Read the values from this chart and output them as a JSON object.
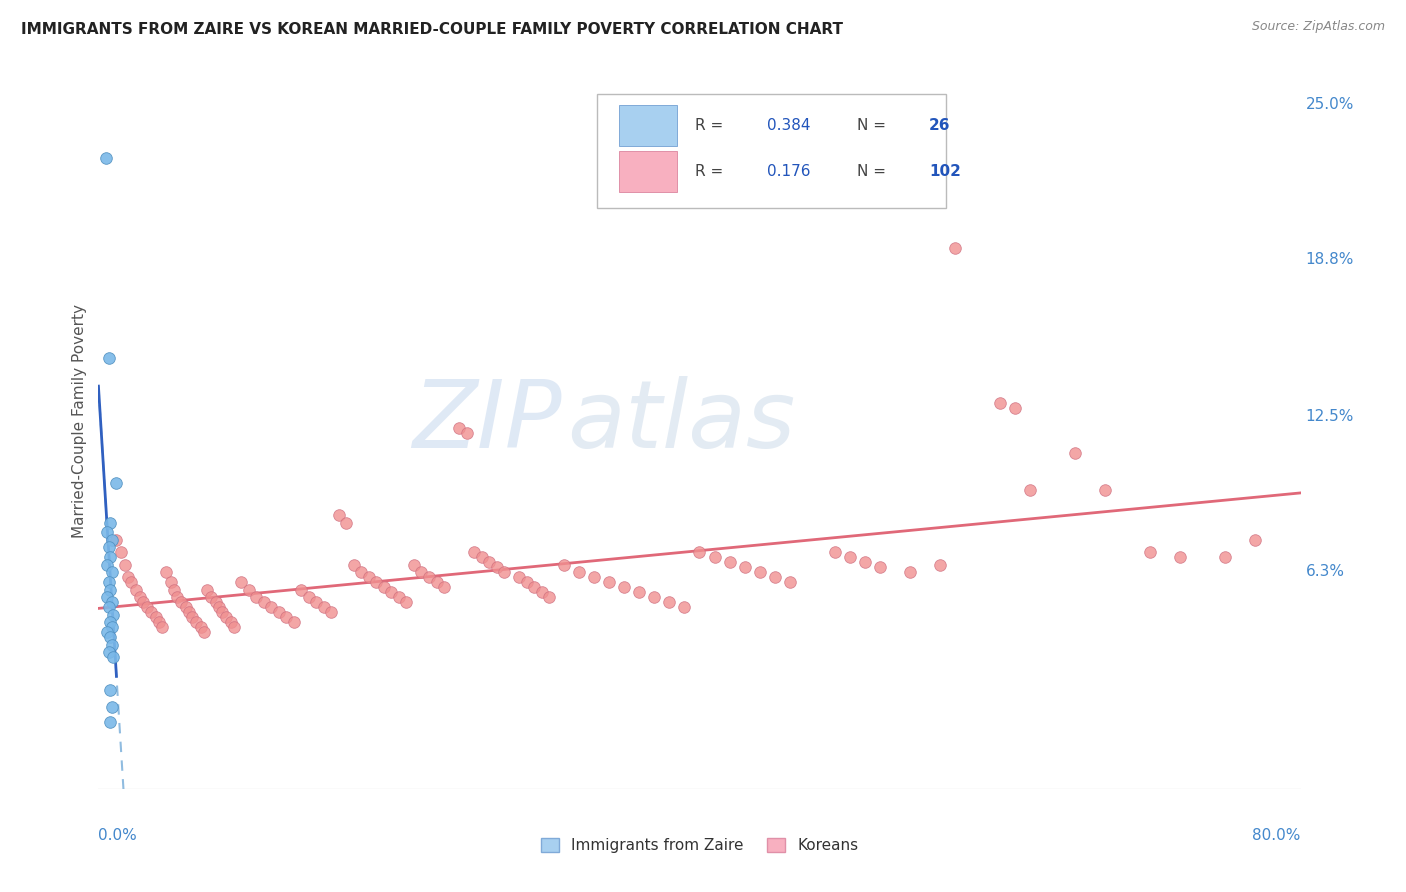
{
  "title": "IMMIGRANTS FROM ZAIRE VS KOREAN MARRIED-COUPLE FAMILY POVERTY CORRELATION CHART",
  "source": "Source: ZipAtlas.com",
  "ylabel": "Married-Couple Family Poverty",
  "xlim": [
    0.0,
    0.8
  ],
  "ylim": [
    -0.025,
    0.27
  ],
  "watermark_zip": "ZIP",
  "watermark_atlas": "atlas",
  "zaire_scatter_color": "#7ab8e8",
  "zaire_scatter_edge": "#5090c0",
  "korean_scatter_color": "#f09090",
  "korean_scatter_edge": "#d07080",
  "zaire_trend_solid_color": "#3060c0",
  "zaire_trend_dash_color": "#90bce0",
  "korean_trend_color": "#e06878",
  "legend_box_color": "#cccccc",
  "right_tick_color": "#4488cc",
  "grid_color": "#d8d8e8",
  "background_color": "#ffffff",
  "right_yticks": [
    0.0,
    0.063,
    0.125,
    0.188,
    0.25
  ],
  "right_yticklabels": [
    "",
    "6.3%",
    "12.5%",
    "18.8%",
    "25.0%"
  ],
  "zaire_points": [
    [
      0.005,
      0.228
    ],
    [
      0.007,
      0.148
    ],
    [
      0.012,
      0.098
    ],
    [
      0.008,
      0.082
    ],
    [
      0.006,
      0.078
    ],
    [
      0.009,
      0.075
    ],
    [
      0.007,
      0.072
    ],
    [
      0.008,
      0.068
    ],
    [
      0.006,
      0.065
    ],
    [
      0.009,
      0.062
    ],
    [
      0.007,
      0.058
    ],
    [
      0.008,
      0.055
    ],
    [
      0.006,
      0.052
    ],
    [
      0.009,
      0.05
    ],
    [
      0.007,
      0.048
    ],
    [
      0.01,
      0.045
    ],
    [
      0.008,
      0.042
    ],
    [
      0.009,
      0.04
    ],
    [
      0.006,
      0.038
    ],
    [
      0.008,
      0.036
    ],
    [
      0.009,
      0.033
    ],
    [
      0.007,
      0.03
    ],
    [
      0.01,
      0.028
    ],
    [
      0.008,
      0.015
    ],
    [
      0.009,
      0.008
    ],
    [
      0.008,
      0.002
    ]
  ],
  "korean_points": [
    [
      0.012,
      0.075
    ],
    [
      0.015,
      0.07
    ],
    [
      0.018,
      0.065
    ],
    [
      0.02,
      0.06
    ],
    [
      0.022,
      0.058
    ],
    [
      0.025,
      0.055
    ],
    [
      0.028,
      0.052
    ],
    [
      0.03,
      0.05
    ],
    [
      0.032,
      0.048
    ],
    [
      0.035,
      0.046
    ],
    [
      0.038,
      0.044
    ],
    [
      0.04,
      0.042
    ],
    [
      0.042,
      0.04
    ],
    [
      0.045,
      0.062
    ],
    [
      0.048,
      0.058
    ],
    [
      0.05,
      0.055
    ],
    [
      0.052,
      0.052
    ],
    [
      0.055,
      0.05
    ],
    [
      0.058,
      0.048
    ],
    [
      0.06,
      0.046
    ],
    [
      0.062,
      0.044
    ],
    [
      0.065,
      0.042
    ],
    [
      0.068,
      0.04
    ],
    [
      0.07,
      0.038
    ],
    [
      0.072,
      0.055
    ],
    [
      0.075,
      0.052
    ],
    [
      0.078,
      0.05
    ],
    [
      0.08,
      0.048
    ],
    [
      0.082,
      0.046
    ],
    [
      0.085,
      0.044
    ],
    [
      0.088,
      0.042
    ],
    [
      0.09,
      0.04
    ],
    [
      0.095,
      0.058
    ],
    [
      0.1,
      0.055
    ],
    [
      0.105,
      0.052
    ],
    [
      0.11,
      0.05
    ],
    [
      0.115,
      0.048
    ],
    [
      0.12,
      0.046
    ],
    [
      0.125,
      0.044
    ],
    [
      0.13,
      0.042
    ],
    [
      0.135,
      0.055
    ],
    [
      0.14,
      0.052
    ],
    [
      0.145,
      0.05
    ],
    [
      0.15,
      0.048
    ],
    [
      0.155,
      0.046
    ],
    [
      0.16,
      0.085
    ],
    [
      0.165,
      0.082
    ],
    [
      0.17,
      0.065
    ],
    [
      0.175,
      0.062
    ],
    [
      0.18,
      0.06
    ],
    [
      0.185,
      0.058
    ],
    [
      0.19,
      0.056
    ],
    [
      0.195,
      0.054
    ],
    [
      0.2,
      0.052
    ],
    [
      0.205,
      0.05
    ],
    [
      0.21,
      0.065
    ],
    [
      0.215,
      0.062
    ],
    [
      0.22,
      0.06
    ],
    [
      0.225,
      0.058
    ],
    [
      0.23,
      0.056
    ],
    [
      0.24,
      0.12
    ],
    [
      0.245,
      0.118
    ],
    [
      0.25,
      0.07
    ],
    [
      0.255,
      0.068
    ],
    [
      0.26,
      0.066
    ],
    [
      0.265,
      0.064
    ],
    [
      0.27,
      0.062
    ],
    [
      0.28,
      0.06
    ],
    [
      0.285,
      0.058
    ],
    [
      0.29,
      0.056
    ],
    [
      0.295,
      0.054
    ],
    [
      0.3,
      0.052
    ],
    [
      0.31,
      0.065
    ],
    [
      0.32,
      0.062
    ],
    [
      0.33,
      0.06
    ],
    [
      0.34,
      0.058
    ],
    [
      0.35,
      0.056
    ],
    [
      0.36,
      0.054
    ],
    [
      0.37,
      0.052
    ],
    [
      0.38,
      0.05
    ],
    [
      0.39,
      0.048
    ],
    [
      0.4,
      0.07
    ],
    [
      0.41,
      0.068
    ],
    [
      0.42,
      0.066
    ],
    [
      0.43,
      0.064
    ],
    [
      0.44,
      0.062
    ],
    [
      0.45,
      0.06
    ],
    [
      0.46,
      0.058
    ],
    [
      0.49,
      0.07
    ],
    [
      0.5,
      0.068
    ],
    [
      0.51,
      0.066
    ],
    [
      0.52,
      0.064
    ],
    [
      0.54,
      0.062
    ],
    [
      0.56,
      0.065
    ],
    [
      0.57,
      0.192
    ],
    [
      0.6,
      0.13
    ],
    [
      0.61,
      0.128
    ],
    [
      0.62,
      0.095
    ],
    [
      0.65,
      0.11
    ],
    [
      0.67,
      0.095
    ],
    [
      0.7,
      0.07
    ],
    [
      0.72,
      0.068
    ],
    [
      0.75,
      0.068
    ],
    [
      0.77,
      0.075
    ]
  ]
}
